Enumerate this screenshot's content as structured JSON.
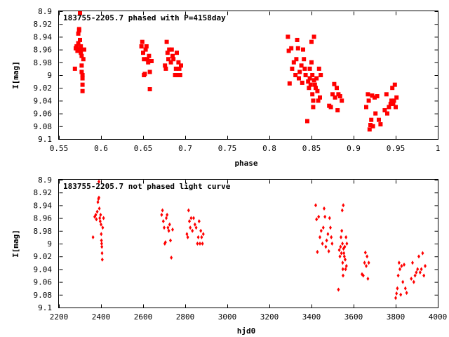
{
  "colors": {
    "points": "#ff0000",
    "axis": "#000000"
  },
  "chart_data": [
    {
      "type": "scatter",
      "title": "183755-2205.7 phased with P=4158day",
      "xlabel": "phase",
      "ylabel": "I[mag]",
      "xlim": [
        0.55,
        1.0
      ],
      "ylim": [
        8.9,
        9.1
      ],
      "y_inverted": true,
      "grid": false,
      "marker": "filled-square",
      "xticks": [
        "0.55",
        "0.6",
        "0.65",
        "0.7",
        "0.75",
        "0.8",
        "0.85",
        "0.9",
        "0.95",
        "1"
      ],
      "yticks": [
        "8.9",
        "8.92",
        "8.94",
        "8.96",
        "8.98",
        "9",
        "9.02",
        "9.04",
        "9.06",
        "9.08",
        "9.1"
      ],
      "points": [
        [
          0.569,
          8.99
        ],
        [
          0.57,
          8.958
        ],
        [
          0.571,
          8.955
        ],
        [
          0.572,
          8.962
        ],
        [
          0.573,
          8.95
        ],
        [
          0.573,
          8.935
        ],
        [
          0.574,
          8.93
        ],
        [
          0.574,
          8.928
        ],
        [
          0.575,
          8.945
        ],
        [
          0.575,
          8.96
        ],
        [
          0.575,
          8.903
        ],
        [
          0.576,
          8.965
        ],
        [
          0.576,
          8.955
        ],
        [
          0.577,
          8.97
        ],
        [
          0.577,
          8.985
        ],
        [
          0.577,
          8.995
        ],
        [
          0.578,
          9.0
        ],
        [
          0.578,
          9.005
        ],
        [
          0.578,
          9.015
        ],
        [
          0.578,
          9.025
        ],
        [
          0.579,
          8.975
        ],
        [
          0.58,
          8.96
        ],
        [
          0.648,
          8.955
        ],
        [
          0.649,
          8.948
        ],
        [
          0.65,
          8.965
        ],
        [
          0.651,
          8.975
        ],
        [
          0.651,
          9.0
        ],
        [
          0.652,
          8.998
        ],
        [
          0.653,
          8.96
        ],
        [
          0.654,
          8.955
        ],
        [
          0.655,
          8.975
        ],
        [
          0.656,
          8.98
        ],
        [
          0.657,
          8.97
        ],
        [
          0.658,
          8.995
        ],
        [
          0.658,
          9.022
        ],
        [
          0.66,
          8.978
        ],
        [
          0.676,
          8.985
        ],
        [
          0.677,
          8.99
        ],
        [
          0.678,
          8.948
        ],
        [
          0.679,
          8.965
        ],
        [
          0.68,
          8.975
        ],
        [
          0.681,
          8.96
        ],
        [
          0.683,
          8.98
        ],
        [
          0.684,
          8.96
        ],
        [
          0.685,
          8.97
        ],
        [
          0.686,
          8.975
        ],
        [
          0.688,
          9.0
        ],
        [
          0.689,
          8.99
        ],
        [
          0.69,
          8.965
        ],
        [
          0.691,
          9.0
        ],
        [
          0.692,
          8.98
        ],
        [
          0.693,
          8.99
        ],
        [
          0.694,
          9.0
        ],
        [
          0.695,
          8.985
        ],
        [
          0.822,
          8.94
        ],
        [
          0.823,
          8.962
        ],
        [
          0.824,
          9.013
        ],
        [
          0.826,
          8.958
        ],
        [
          0.827,
          8.99
        ],
        [
          0.829,
          8.98
        ],
        [
          0.831,
          9.0
        ],
        [
          0.832,
          8.975
        ],
        [
          0.833,
          8.945
        ],
        [
          0.834,
          8.958
        ],
        [
          0.835,
          9.005
        ],
        [
          0.836,
          8.995
        ],
        [
          0.838,
          8.985
        ],
        [
          0.839,
          9.012
        ],
        [
          0.84,
          8.96
        ],
        [
          0.841,
          8.975
        ],
        [
          0.842,
          8.99
        ],
        [
          0.843,
          9.0
        ],
        [
          0.845,
          9.072
        ],
        [
          0.846,
          9.01
        ],
        [
          0.847,
          9.02
        ],
        [
          0.848,
          9.005
        ],
        [
          0.848,
          8.99
        ],
        [
          0.849,
          9.015
        ],
        [
          0.85,
          8.98
        ],
        [
          0.85,
          8.948
        ],
        [
          0.851,
          9.0
        ],
        [
          0.851,
          9.03
        ],
        [
          0.852,
          9.04
        ],
        [
          0.852,
          9.05
        ],
        [
          0.853,
          8.94
        ],
        [
          0.853,
          9.008
        ],
        [
          0.854,
          9.015
        ],
        [
          0.855,
          9.02
        ],
        [
          0.856,
          9.005
        ],
        [
          0.857,
          9.025
        ],
        [
          0.858,
          9.04
        ],
        [
          0.859,
          8.99
        ],
        [
          0.86,
          9.035
        ],
        [
          0.861,
          9.0
        ],
        [
          0.871,
          9.048
        ],
        [
          0.873,
          9.05
        ],
        [
          0.875,
          9.03
        ],
        [
          0.877,
          9.014
        ],
        [
          0.878,
          9.035
        ],
        [
          0.88,
          9.02
        ],
        [
          0.881,
          9.055
        ],
        [
          0.882,
          9.03
        ],
        [
          0.884,
          9.033
        ],
        [
          0.886,
          9.04
        ],
        [
          0.915,
          9.05
        ],
        [
          0.917,
          9.03
        ],
        [
          0.918,
          9.04
        ],
        [
          0.919,
          9.085
        ],
        [
          0.92,
          9.078
        ],
        [
          0.921,
          9.07
        ],
        [
          0.922,
          9.032
        ],
        [
          0.923,
          9.08
        ],
        [
          0.925,
          9.035
        ],
        [
          0.926,
          9.06
        ],
        [
          0.928,
          9.033
        ],
        [
          0.93,
          9.07
        ],
        [
          0.932,
          9.077
        ],
        [
          0.937,
          9.055
        ],
        [
          0.939,
          9.03
        ],
        [
          0.94,
          9.06
        ],
        [
          0.942,
          9.05
        ],
        [
          0.944,
          9.045
        ],
        [
          0.945,
          9.04
        ],
        [
          0.946,
          9.02
        ],
        [
          0.947,
          9.045
        ],
        [
          0.948,
          9.04
        ],
        [
          0.949,
          9.015
        ],
        [
          0.95,
          9.05
        ],
        [
          0.951,
          9.035
        ]
      ]
    },
    {
      "type": "scatter",
      "title": "183755-2205.7 not phased light curve",
      "xlabel": "hjd0",
      "ylabel": "I[mag]",
      "xlim": [
        2200,
        4000
      ],
      "ylim": [
        8.9,
        9.1
      ],
      "y_inverted": true,
      "grid": false,
      "marker": "small-diamond",
      "xticks": [
        "2200",
        "2400",
        "2600",
        "2800",
        "3000",
        "3200",
        "3400",
        "3600",
        "3800",
        "4000"
      ],
      "yticks": [
        "8.9",
        "8.92",
        "8.94",
        "8.96",
        "8.98",
        "9",
        "9.02",
        "9.04",
        "9.06",
        "9.08",
        "9.1"
      ],
      "points": [
        [
          2362,
          8.99
        ],
        [
          2370,
          8.958
        ],
        [
          2375,
          8.955
        ],
        [
          2378,
          8.962
        ],
        [
          2382,
          8.95
        ],
        [
          2385,
          8.935
        ],
        [
          2388,
          8.93
        ],
        [
          2390,
          8.928
        ],
        [
          2390,
          8.903
        ],
        [
          2392,
          8.945
        ],
        [
          2394,
          8.96
        ],
        [
          2396,
          8.965
        ],
        [
          2398,
          8.955
        ],
        [
          2400,
          8.97
        ],
        [
          2401,
          8.985
        ],
        [
          2402,
          8.995
        ],
        [
          2403,
          9.0
        ],
        [
          2404,
          9.005
        ],
        [
          2405,
          9.015
        ],
        [
          2406,
          9.025
        ],
        [
          2408,
          8.975
        ],
        [
          2412,
          8.96
        ],
        [
          2688,
          8.955
        ],
        [
          2692,
          8.948
        ],
        [
          2696,
          8.965
        ],
        [
          2700,
          8.975
        ],
        [
          2703,
          9.0
        ],
        [
          2706,
          8.998
        ],
        [
          2710,
          8.96
        ],
        [
          2714,
          8.955
        ],
        [
          2718,
          8.975
        ],
        [
          2722,
          8.98
        ],
        [
          2726,
          8.97
        ],
        [
          2730,
          8.995
        ],
        [
          2734,
          9.022
        ],
        [
          2740,
          8.978
        ],
        [
          2808,
          8.985
        ],
        [
          2812,
          8.99
        ],
        [
          2816,
          8.948
        ],
        [
          2820,
          8.965
        ],
        [
          2824,
          8.975
        ],
        [
          2828,
          8.96
        ],
        [
          2834,
          8.98
        ],
        [
          2840,
          8.96
        ],
        [
          2846,
          8.97
        ],
        [
          2852,
          8.975
        ],
        [
          2858,
          9.0
        ],
        [
          2862,
          8.99
        ],
        [
          2866,
          8.965
        ],
        [
          2870,
          9.0
        ],
        [
          2874,
          8.98
        ],
        [
          2878,
          8.99
        ],
        [
          2882,
          9.0
        ],
        [
          2886,
          8.985
        ],
        [
          3420,
          8.94
        ],
        [
          3424,
          8.962
        ],
        [
          3428,
          9.013
        ],
        [
          3434,
          8.958
        ],
        [
          3440,
          8.99
        ],
        [
          3446,
          8.98
        ],
        [
          3452,
          9.0
        ],
        [
          3456,
          8.975
        ],
        [
          3460,
          8.945
        ],
        [
          3464,
          8.958
        ],
        [
          3468,
          9.005
        ],
        [
          3472,
          8.995
        ],
        [
          3478,
          8.985
        ],
        [
          3482,
          9.012
        ],
        [
          3486,
          8.96
        ],
        [
          3490,
          8.975
        ],
        [
          3494,
          8.99
        ],
        [
          3498,
          9.0
        ],
        [
          3528,
          9.072
        ],
        [
          3532,
          9.01
        ],
        [
          3535,
          9.02
        ],
        [
          3538,
          9.005
        ],
        [
          3540,
          8.99
        ],
        [
          3542,
          9.015
        ],
        [
          3544,
          8.98
        ],
        [
          3546,
          8.948
        ],
        [
          3547,
          9.0
        ],
        [
          3548,
          9.03
        ],
        [
          3549,
          9.04
        ],
        [
          3550,
          9.05
        ],
        [
          3551,
          8.94
        ],
        [
          3552,
          9.008
        ],
        [
          3554,
          9.015
        ],
        [
          3556,
          9.02
        ],
        [
          3558,
          9.005
        ],
        [
          3560,
          9.025
        ],
        [
          3562,
          9.04
        ],
        [
          3564,
          8.99
        ],
        [
          3566,
          9.035
        ],
        [
          3568,
          9.0
        ],
        [
          3640,
          9.048
        ],
        [
          3646,
          9.05
        ],
        [
          3652,
          9.03
        ],
        [
          3656,
          9.014
        ],
        [
          3660,
          9.035
        ],
        [
          3664,
          9.02
        ],
        [
          3668,
          9.055
        ],
        [
          3672,
          9.03
        ],
        [
          3800,
          9.085
        ],
        [
          3804,
          9.078
        ],
        [
          3808,
          9.07
        ],
        [
          3812,
          9.05
        ],
        [
          3816,
          9.03
        ],
        [
          3820,
          9.04
        ],
        [
          3824,
          9.08
        ],
        [
          3828,
          9.035
        ],
        [
          3834,
          9.06
        ],
        [
          3840,
          9.033
        ],
        [
          3846,
          9.07
        ],
        [
          3852,
          9.077
        ],
        [
          3874,
          9.055
        ],
        [
          3880,
          9.03
        ],
        [
          3886,
          9.06
        ],
        [
          3892,
          9.05
        ],
        [
          3898,
          9.045
        ],
        [
          3904,
          9.04
        ],
        [
          3910,
          9.02
        ],
        [
          3916,
          9.045
        ],
        [
          3922,
          9.04
        ],
        [
          3928,
          9.015
        ],
        [
          3934,
          9.05
        ],
        [
          3940,
          9.035
        ]
      ]
    }
  ]
}
